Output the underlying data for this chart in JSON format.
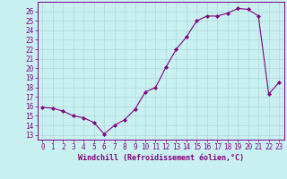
{
  "x": [
    0,
    1,
    2,
    3,
    4,
    5,
    6,
    7,
    8,
    9,
    10,
    11,
    12,
    13,
    14,
    15,
    16,
    17,
    18,
    19,
    20,
    21,
    22,
    23
  ],
  "y": [
    15.9,
    15.8,
    15.5,
    15.0,
    14.8,
    14.3,
    13.1,
    14.0,
    14.6,
    15.7,
    17.5,
    18.0,
    20.1,
    22.0,
    23.3,
    25.0,
    25.5,
    25.5,
    25.8,
    26.3,
    26.2,
    25.5,
    17.3,
    18.5
  ],
  "line_color": "#800080",
  "marker": "D",
  "marker_size": 2.0,
  "bg_color": "#c8f0f0",
  "grid_color": "#b0d8d8",
  "ylabel_ticks": [
    13,
    14,
    15,
    16,
    17,
    18,
    19,
    20,
    21,
    22,
    23,
    24,
    25,
    26
  ],
  "xlabel": "Windchill (Refroidissement éolien,°C)",
  "ylim": [
    12.5,
    27.0
  ],
  "xlim": [
    -0.5,
    23.5
  ],
  "label_color": "#800080",
  "font_size": 5.5,
  "xlabel_font_size": 6.0,
  "linewidth": 0.8
}
